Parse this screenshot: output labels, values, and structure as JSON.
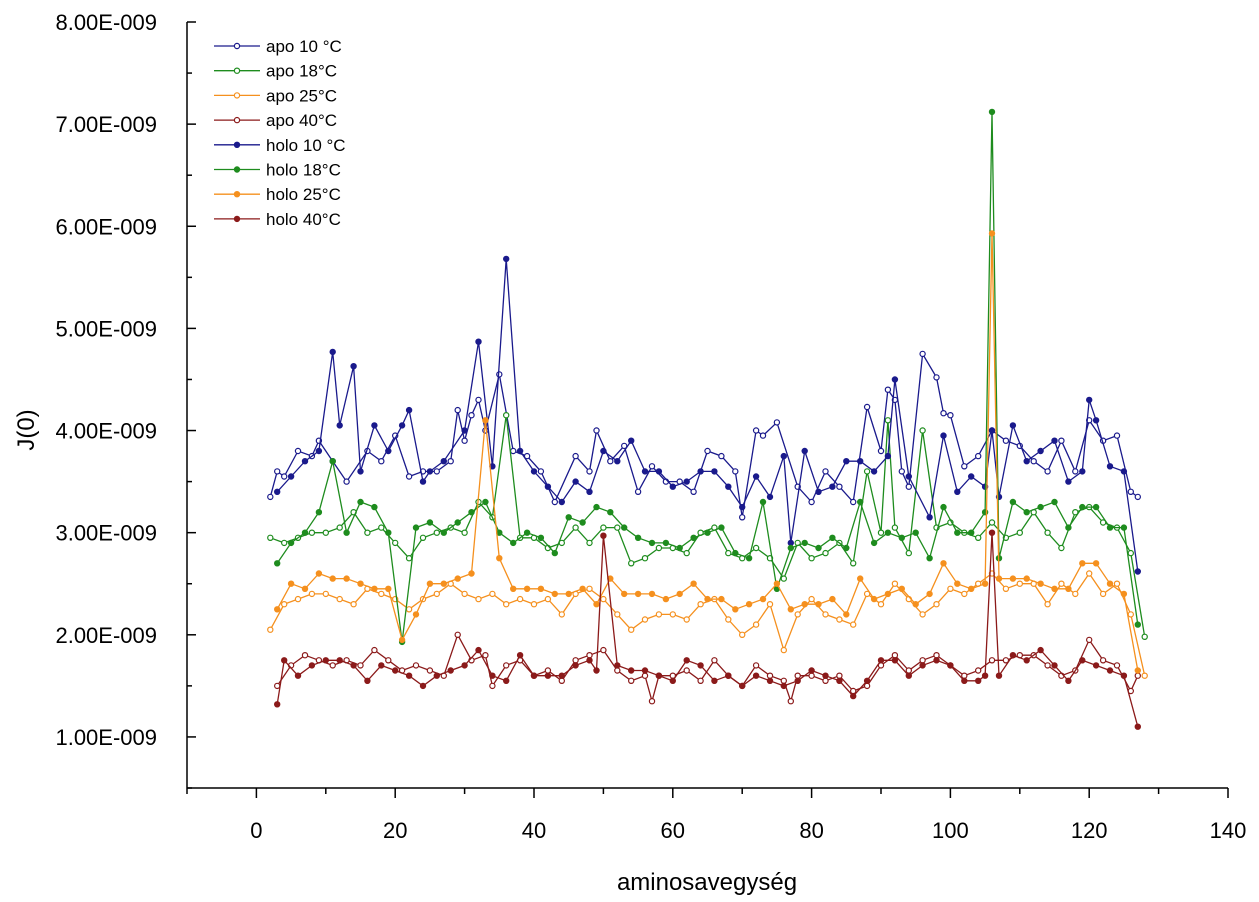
{
  "chart_data": {
    "type": "line",
    "title": "",
    "xlabel": "aminosavegység",
    "ylabel": "J(0)",
    "xlim": [
      -10,
      140
    ],
    "ylim": [
      5e-10,
      8e-09
    ],
    "x_ticks": [
      0,
      20,
      40,
      60,
      80,
      100,
      120,
      140
    ],
    "x_tick_labels": [
      "0",
      "20",
      "40",
      "60",
      "80",
      "100",
      "120",
      "140"
    ],
    "y_ticks": [
      1e-09,
      2e-09,
      3e-09,
      4e-09,
      5e-09,
      6e-09,
      7e-09,
      8e-09
    ],
    "y_tick_labels": [
      "1.00E-009",
      "2.00E-009",
      "3.00E-009",
      "4.00E-009",
      "5.00E-009",
      "6.00E-009",
      "7.00E-009",
      "8.00E-009"
    ],
    "legend_position": "top-left",
    "grid": false,
    "series": [
      {
        "name": "apo 10 °C",
        "color": "#1a1a8c",
        "marker": "open",
        "x": [
          2,
          3,
          4,
          6,
          8,
          9,
          11,
          13,
          16,
          18,
          20,
          22,
          24,
          26,
          28,
          29,
          30,
          31,
          32,
          33,
          35,
          37,
          39,
          41,
          43,
          46,
          48,
          49,
          51,
          53,
          55,
          57,
          59,
          61,
          63,
          65,
          67,
          69,
          70,
          72,
          73,
          75,
          78,
          80,
          82,
          84,
          86,
          88,
          90,
          91,
          92,
          93,
          94,
          96,
          98,
          99,
          100,
          102,
          104,
          106,
          108,
          110,
          112,
          114,
          116,
          118,
          120,
          122,
          124,
          126,
          127
        ],
        "y": [
          3.35e-09,
          3.6e-09,
          3.55e-09,
          3.8e-09,
          3.75e-09,
          3.9e-09,
          3.7e-09,
          3.5e-09,
          3.8e-09,
          3.7e-09,
          3.95e-09,
          3.55e-09,
          3.6e-09,
          3.6e-09,
          3.7e-09,
          4.2e-09,
          3.9e-09,
          4.15e-09,
          4.3e-09,
          4e-09,
          4.55e-09,
          3.8e-09,
          3.75e-09,
          3.6e-09,
          3.3e-09,
          3.75e-09,
          3.6e-09,
          4e-09,
          3.7e-09,
          3.85e-09,
          3.4e-09,
          3.65e-09,
          3.5e-09,
          3.5e-09,
          3.4e-09,
          3.8e-09,
          3.75e-09,
          3.6e-09,
          3.15e-09,
          4e-09,
          3.95e-09,
          4.08e-09,
          3.45e-09,
          3.3e-09,
          3.6e-09,
          3.45e-09,
          3.3e-09,
          4.23e-09,
          3.8e-09,
          4.4e-09,
          4.3e-09,
          3.6e-09,
          3.45e-09,
          4.75e-09,
          4.52e-09,
          4.17e-09,
          4.15e-09,
          3.65e-09,
          3.75e-09,
          4e-09,
          3.9e-09,
          3.85e-09,
          3.7e-09,
          3.6e-09,
          3.9e-09,
          3.6e-09,
          4.1e-09,
          3.9e-09,
          3.95e-09,
          3.4e-09,
          3.35e-09
        ]
      },
      {
        "name": "apo 18°C",
        "color": "#1e8c1e",
        "marker": "open",
        "x": [
          2,
          4,
          6,
          8,
          10,
          12,
          14,
          16,
          18,
          20,
          22,
          24,
          26,
          28,
          30,
          32,
          34,
          36,
          38,
          40,
          42,
          44,
          46,
          48,
          50,
          52,
          54,
          56,
          58,
          60,
          62,
          64,
          66,
          68,
          70,
          72,
          74,
          76,
          78,
          80,
          82,
          84,
          86,
          88,
          90,
          91,
          92,
          94,
          96,
          98,
          100,
          102,
          104,
          106,
          108,
          110,
          112,
          114,
          116,
          118,
          120,
          122,
          124,
          126,
          128
        ],
        "y": [
          2.95e-09,
          2.9e-09,
          2.95e-09,
          3e-09,
          3e-09,
          3.05e-09,
          3.2e-09,
          3e-09,
          3.05e-09,
          2.9e-09,
          2.75e-09,
          2.95e-09,
          3e-09,
          3.05e-09,
          3e-09,
          3.3e-09,
          3.15e-09,
          4.15e-09,
          2.95e-09,
          2.95e-09,
          2.85e-09,
          2.9e-09,
          3.05e-09,
          2.9e-09,
          3.05e-09,
          3.05e-09,
          2.7e-09,
          2.75e-09,
          2.85e-09,
          2.85e-09,
          2.8e-09,
          3e-09,
          3.05e-09,
          2.8e-09,
          2.75e-09,
          2.85e-09,
          2.75e-09,
          2.55e-09,
          2.9e-09,
          2.75e-09,
          2.8e-09,
          2.9e-09,
          2.7e-09,
          3.6e-09,
          3e-09,
          4.1e-09,
          3.05e-09,
          2.8e-09,
          4e-09,
          3.05e-09,
          3.1e-09,
          3e-09,
          2.95e-09,
          3.1e-09,
          2.95e-09,
          3e-09,
          3.2e-09,
          3e-09,
          2.85e-09,
          3.2e-09,
          3.25e-09,
          3.1e-09,
          3.05e-09,
          2.8e-09,
          1.98e-09
        ]
      },
      {
        "name": "apo 25°C",
        "color": "#f5901e",
        "marker": "open",
        "x": [
          2,
          4,
          6,
          8,
          10,
          12,
          14,
          16,
          18,
          20,
          22,
          24,
          26,
          28,
          30,
          32,
          34,
          36,
          38,
          40,
          42,
          44,
          46,
          48,
          50,
          52,
          54,
          56,
          58,
          60,
          62,
          64,
          66,
          68,
          70,
          72,
          74,
          76,
          78,
          80,
          82,
          84,
          86,
          88,
          90,
          92,
          94,
          96,
          98,
          100,
          102,
          104,
          106,
          108,
          110,
          112,
          114,
          116,
          118,
          120,
          122,
          124,
          126,
          128
        ],
        "y": [
          2.05e-09,
          2.3e-09,
          2.35e-09,
          2.4e-09,
          2.4e-09,
          2.35e-09,
          2.3e-09,
          2.45e-09,
          2.4e-09,
          2.35e-09,
          2.25e-09,
          2.35e-09,
          2.4e-09,
          2.5e-09,
          2.4e-09,
          2.35e-09,
          2.4e-09,
          2.3e-09,
          2.35e-09,
          2.3e-09,
          2.35e-09,
          2.2e-09,
          2.4e-09,
          2.45e-09,
          2.35e-09,
          2.2e-09,
          2.05e-09,
          2.15e-09,
          2.2e-09,
          2.2e-09,
          2.15e-09,
          2.3e-09,
          2.35e-09,
          2.15e-09,
          2e-09,
          2.1e-09,
          2.3e-09,
          1.85e-09,
          2.2e-09,
          2.35e-09,
          2.2e-09,
          2.15e-09,
          2.1e-09,
          2.4e-09,
          2.3e-09,
          2.5e-09,
          2.35e-09,
          2.2e-09,
          2.3e-09,
          2.45e-09,
          2.4e-09,
          2.5e-09,
          2.6e-09,
          2.45e-09,
          2.5e-09,
          2.5e-09,
          2.3e-09,
          2.5e-09,
          2.4e-09,
          2.6e-09,
          2.4e-09,
          2.5e-09,
          2.2e-09,
          1.6e-09
        ]
      },
      {
        "name": "apo 40°C",
        "color": "#8b1a1a",
        "marker": "open",
        "x": [
          3,
          5,
          7,
          9,
          11,
          13,
          15,
          17,
          19,
          21,
          23,
          25,
          27,
          29,
          31,
          33,
          34,
          36,
          38,
          40,
          42,
          44,
          46,
          48,
          50,
          52,
          54,
          56,
          57,
          58,
          60,
          62,
          64,
          66,
          68,
          70,
          72,
          74,
          76,
          77,
          78,
          80,
          82,
          84,
          86,
          88,
          90,
          92,
          94,
          96,
          98,
          100,
          102,
          104,
          106,
          108,
          110,
          112,
          114,
          116,
          118,
          120,
          122,
          124,
          126,
          127
        ],
        "y": [
          1.5e-09,
          1.7e-09,
          1.8e-09,
          1.75e-09,
          1.7e-09,
          1.75e-09,
          1.7e-09,
          1.85e-09,
          1.75e-09,
          1.65e-09,
          1.7e-09,
          1.65e-09,
          1.6e-09,
          2e-09,
          1.75e-09,
          1.8e-09,
          1.5e-09,
          1.7e-09,
          1.75e-09,
          1.6e-09,
          1.65e-09,
          1.55e-09,
          1.75e-09,
          1.8e-09,
          1.85e-09,
          1.65e-09,
          1.55e-09,
          1.6e-09,
          1.35e-09,
          1.6e-09,
          1.6e-09,
          1.65e-09,
          1.55e-09,
          1.75e-09,
          1.6e-09,
          1.5e-09,
          1.7e-09,
          1.6e-09,
          1.55e-09,
          1.35e-09,
          1.6e-09,
          1.6e-09,
          1.55e-09,
          1.6e-09,
          1.45e-09,
          1.5e-09,
          1.7e-09,
          1.8e-09,
          1.65e-09,
          1.75e-09,
          1.8e-09,
          1.7e-09,
          1.6e-09,
          1.65e-09,
          1.75e-09,
          1.75e-09,
          1.8e-09,
          1.8e-09,
          1.7e-09,
          1.6e-09,
          1.65e-09,
          1.95e-09,
          1.75e-09,
          1.7e-09,
          1.45e-09,
          1.6e-09
        ]
      },
      {
        "name": "holo 10 °C",
        "color": "#1a1a8c",
        "marker": "filled",
        "x": [
          3,
          5,
          7,
          9,
          11,
          12,
          14,
          15,
          17,
          19,
          21,
          22,
          24,
          25,
          27,
          30,
          32,
          34,
          36,
          38,
          40,
          42,
          44,
          46,
          48,
          50,
          52,
          54,
          56,
          58,
          60,
          62,
          64,
          66,
          68,
          70,
          72,
          74,
          76,
          77,
          79,
          81,
          83,
          85,
          87,
          89,
          91,
          92,
          94,
          97,
          99,
          101,
          103,
          105,
          106,
          107,
          109,
          111,
          113,
          115,
          117,
          119,
          120,
          121,
          123,
          125,
          127
        ],
        "y": [
          3.4e-09,
          3.55e-09,
          3.7e-09,
          3.8e-09,
          4.77e-09,
          4.05e-09,
          4.63e-09,
          3.6e-09,
          4.05e-09,
          3.8e-09,
          4.05e-09,
          4.2e-09,
          3.5e-09,
          3.6e-09,
          3.7e-09,
          4e-09,
          4.87e-09,
          3.65e-09,
          5.68e-09,
          3.8e-09,
          3.6e-09,
          3.45e-09,
          3.3e-09,
          3.5e-09,
          3.4e-09,
          3.8e-09,
          3.7e-09,
          3.9e-09,
          3.6e-09,
          3.6e-09,
          3.45e-09,
          3.5e-09,
          3.6e-09,
          3.6e-09,
          3.45e-09,
          3.25e-09,
          3.55e-09,
          3.35e-09,
          3.75e-09,
          2.9e-09,
          3.8e-09,
          3.4e-09,
          3.45e-09,
          3.7e-09,
          3.7e-09,
          3.6e-09,
          3.75e-09,
          4.5e-09,
          3.55e-09,
          3.15e-09,
          3.95e-09,
          3.4e-09,
          3.55e-09,
          3.45e-09,
          4e-09,
          3.35e-09,
          4.05e-09,
          3.7e-09,
          3.8e-09,
          3.9e-09,
          3.5e-09,
          3.6e-09,
          4.3e-09,
          4.1e-09,
          3.65e-09,
          3.6e-09,
          2.62e-09
        ]
      },
      {
        "name": "holo 18°C",
        "color": "#1e8c1e",
        "marker": "filled",
        "x": [
          3,
          5,
          7,
          9,
          11,
          13,
          15,
          17,
          19,
          21,
          23,
          25,
          27,
          29,
          31,
          33,
          35,
          37,
          39,
          41,
          43,
          45,
          47,
          49,
          51,
          53,
          55,
          57,
          59,
          61,
          63,
          65,
          67,
          69,
          71,
          73,
          75,
          77,
          79,
          81,
          83,
          85,
          87,
          89,
          91,
          93,
          95,
          97,
          99,
          101,
          103,
          105,
          106,
          107,
          109,
          111,
          113,
          115,
          117,
          119,
          121,
          123,
          125,
          127
        ],
        "y": [
          2.7e-09,
          2.9e-09,
          3e-09,
          3.2e-09,
          3.7e-09,
          3e-09,
          3.3e-09,
          3.25e-09,
          3e-09,
          1.93e-09,
          3.05e-09,
          3.1e-09,
          3e-09,
          3.1e-09,
          3.2e-09,
          3.3e-09,
          3e-09,
          2.9e-09,
          3e-09,
          2.95e-09,
          2.8e-09,
          3.15e-09,
          3.1e-09,
          3.25e-09,
          3.2e-09,
          3.05e-09,
          2.95e-09,
          2.9e-09,
          2.9e-09,
          2.85e-09,
          2.95e-09,
          3e-09,
          3.05e-09,
          2.8e-09,
          2.75e-09,
          3.3e-09,
          2.45e-09,
          2.85e-09,
          2.9e-09,
          2.85e-09,
          2.95e-09,
          2.85e-09,
          3.3e-09,
          2.9e-09,
          3e-09,
          2.95e-09,
          3e-09,
          2.75e-09,
          3.25e-09,
          3e-09,
          3e-09,
          3.2e-09,
          7.12e-09,
          2.75e-09,
          3.3e-09,
          3.2e-09,
          3.25e-09,
          3.3e-09,
          3.05e-09,
          3.25e-09,
          3.25e-09,
          3.05e-09,
          3.05e-09,
          2.1e-09
        ]
      },
      {
        "name": "holo 25°C",
        "color": "#f5901e",
        "marker": "filled",
        "x": [
          3,
          5,
          7,
          9,
          11,
          13,
          15,
          17,
          19,
          21,
          23,
          25,
          27,
          29,
          31,
          33,
          35,
          37,
          39,
          41,
          43,
          45,
          47,
          49,
          51,
          53,
          55,
          57,
          59,
          61,
          63,
          65,
          67,
          69,
          71,
          73,
          75,
          77,
          79,
          81,
          83,
          85,
          87,
          89,
          91,
          93,
          95,
          97,
          99,
          101,
          103,
          105,
          106,
          107,
          109,
          111,
          113,
          115,
          117,
          119,
          121,
          123,
          125,
          127
        ],
        "y": [
          2.25e-09,
          2.5e-09,
          2.45e-09,
          2.6e-09,
          2.55e-09,
          2.55e-09,
          2.5e-09,
          2.45e-09,
          2.45e-09,
          1.95e-09,
          2.2e-09,
          2.5e-09,
          2.5e-09,
          2.55e-09,
          2.6e-09,
          4.1e-09,
          2.75e-09,
          2.45e-09,
          2.45e-09,
          2.45e-09,
          2.4e-09,
          2.4e-09,
          2.45e-09,
          2.3e-09,
          2.55e-09,
          2.4e-09,
          2.4e-09,
          2.4e-09,
          2.35e-09,
          2.4e-09,
          2.5e-09,
          2.35e-09,
          2.35e-09,
          2.25e-09,
          2.3e-09,
          2.35e-09,
          2.5e-09,
          2.25e-09,
          2.3e-09,
          2.3e-09,
          2.35e-09,
          2.2e-09,
          2.55e-09,
          2.35e-09,
          2.4e-09,
          2.45e-09,
          2.3e-09,
          2.4e-09,
          2.7e-09,
          2.5e-09,
          2.45e-09,
          2.5e-09,
          5.93e-09,
          2.55e-09,
          2.55e-09,
          2.55e-09,
          2.5e-09,
          2.45e-09,
          2.45e-09,
          2.7e-09,
          2.7e-09,
          2.5e-09,
          2.4e-09,
          1.65e-09
        ]
      },
      {
        "name": "holo 40°C",
        "color": "#8b1a1a",
        "marker": "filled",
        "x": [
          3,
          4,
          6,
          8,
          10,
          12,
          14,
          16,
          18,
          20,
          22,
          24,
          26,
          28,
          30,
          32,
          34,
          36,
          38,
          40,
          42,
          44,
          46,
          48,
          49,
          50,
          52,
          54,
          56,
          58,
          60,
          62,
          64,
          66,
          68,
          70,
          72,
          74,
          76,
          78,
          80,
          82,
          84,
          86,
          88,
          90,
          92,
          94,
          96,
          98,
          100,
          102,
          104,
          105,
          106,
          107,
          109,
          111,
          113,
          115,
          117,
          119,
          121,
          123,
          125,
          127
        ],
        "y": [
          1.32e-09,
          1.75e-09,
          1.6e-09,
          1.7e-09,
          1.75e-09,
          1.75e-09,
          1.7e-09,
          1.55e-09,
          1.7e-09,
          1.65e-09,
          1.6e-09,
          1.5e-09,
          1.6e-09,
          1.65e-09,
          1.7e-09,
          1.85e-09,
          1.6e-09,
          1.55e-09,
          1.8e-09,
          1.6e-09,
          1.6e-09,
          1.6e-09,
          1.7e-09,
          1.75e-09,
          1.65e-09,
          2.97e-09,
          1.7e-09,
          1.65e-09,
          1.65e-09,
          1.6e-09,
          1.55e-09,
          1.75e-09,
          1.7e-09,
          1.55e-09,
          1.6e-09,
          1.5e-09,
          1.6e-09,
          1.55e-09,
          1.5e-09,
          1.55e-09,
          1.65e-09,
          1.6e-09,
          1.55e-09,
          1.4e-09,
          1.55e-09,
          1.75e-09,
          1.75e-09,
          1.6e-09,
          1.7e-09,
          1.75e-09,
          1.7e-09,
          1.55e-09,
          1.55e-09,
          1.6e-09,
          3e-09,
          1.6e-09,
          1.8e-09,
          1.75e-09,
          1.85e-09,
          1.7e-09,
          1.55e-09,
          1.75e-09,
          1.7e-09,
          1.65e-09,
          1.6e-09,
          1.1e-09
        ]
      }
    ]
  }
}
